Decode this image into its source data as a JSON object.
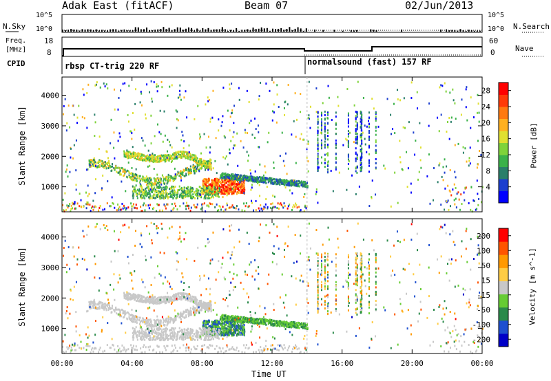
{
  "header": {
    "site": "Adak East (fitACF)",
    "beam": "Beam 07",
    "date": "02/Jun/2013"
  },
  "top_panels": {
    "nsky_label": "N.Sky",
    "nsearch_label": "N.Search",
    "nsky_ticks": [
      "10^5",
      "10^0"
    ],
    "nsearch_ticks": [
      "10^5",
      "10^0"
    ],
    "freq_label_1": "Freq.",
    "freq_label_2": "[MHz]",
    "freq_ticks": [
      "18",
      "8"
    ],
    "nave_label": "Nave",
    "nave_ticks": [
      "60",
      "0"
    ],
    "cpid_label": "CPID",
    "cpid_1": "rbsp CT-trig 220 RF",
    "cpid_2": "normalsound (fast) 157 RF"
  },
  "chart_data": [
    {
      "type": "heatmap",
      "name": "power",
      "ylabel": "Slant Range [km]",
      "xlabel": "Time UT",
      "xticks": [
        "00:00",
        "04:00",
        "08:00",
        "12:00",
        "16:00",
        "20:00",
        "00:00"
      ],
      "xlim_hours": [
        0,
        24
      ],
      "yticks": [
        "1000",
        "2000",
        "3000",
        "4000"
      ],
      "ytick_values": [
        1000,
        2000,
        3000,
        4000
      ],
      "ylim": [
        180,
        4600
      ],
      "colorbar": {
        "label": "Power [dB]",
        "ticks": [
          "4",
          "8",
          "12",
          "16",
          "20",
          "24",
          "28"
        ],
        "range": [
          0,
          30
        ],
        "colors": [
          "#0000ff",
          "#1c3fcf",
          "#2a7f6a",
          "#3bb24a",
          "#7fd33a",
          "#e0e030",
          "#ffb020",
          "#ff7a10",
          "#ff3a08",
          "#ff0000"
        ]
      }
    },
    {
      "type": "heatmap",
      "name": "velocity",
      "ylabel": "Slant Range [km]",
      "xlabel": "Time UT",
      "xticks": [
        "00:00",
        "04:00",
        "08:00",
        "12:00",
        "16:00",
        "20:00",
        "00:00"
      ],
      "xlim_hours": [
        0,
        24
      ],
      "yticks": [
        "1000",
        "2000",
        "3000",
        "4000"
      ],
      "ytick_values": [
        1000,
        2000,
        3000,
        4000
      ],
      "ylim": [
        180,
        4600
      ],
      "colorbar": {
        "label": "Velocity [m s^-1]",
        "ticks": [
          "200",
          "100",
          "50",
          "15",
          "-15",
          "-50",
          "-100",
          "-200"
        ],
        "range": [
          -250,
          250
        ],
        "colors": [
          "#0000c8",
          "#1e50d0",
          "#2a8a4a",
          "#66cc33",
          "#c8c8c8",
          "#ffcc44",
          "#ff9900",
          "#ff5500",
          "#ff0000"
        ]
      }
    }
  ],
  "xaxis": {
    "label": "Time UT"
  }
}
